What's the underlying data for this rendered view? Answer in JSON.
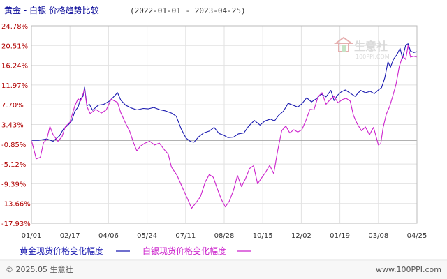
{
  "header": {
    "title": "黄金 - 白银 价格趋势比较",
    "date_range": "(2022-01-01 - 2023-04-25)"
  },
  "watermark": {
    "brand": "生意社",
    "url": "100PPI.COM"
  },
  "footer": {
    "copyright": "© 2025.05 生意社",
    "site": "www.100PPI.com"
  },
  "colors": {
    "gold": "#1a1ab0",
    "silver": "#cc22cc",
    "ytick": "#b00000",
    "grid": "#e2e2e2",
    "zero": "#999999"
  },
  "chart_data": {
    "type": "line",
    "ylim": [
      -17.93,
      24.78
    ],
    "yticks": [
      24.78,
      20.51,
      16.24,
      11.97,
      7.7,
      3.43,
      -0.85,
      -5.12,
      -9.39,
      -13.66,
      -17.93
    ],
    "ytick_labels": [
      "24.78%",
      "20.51%",
      "16.24%",
      "11.97%",
      "7.70%",
      "3.43%",
      "-0.85%",
      "-5.12%",
      "-9.39%",
      "-13.66%",
      "-17.93%"
    ],
    "xtick_labels": [
      "01/01",
      "02/17",
      "04/06",
      "05/24",
      "07/11",
      "08/28",
      "10/15",
      "12/02",
      "01/19",
      "03/08",
      "04/25"
    ],
    "x_start": "2022-01-01",
    "x_end": "2023-04-25",
    "series": [
      {
        "name": "黄金现货价格变化幅度",
        "color": "#1a1ab0",
        "points": [
          [
            "2022-01-01",
            0.0
          ],
          [
            "2022-01-10",
            0.0
          ],
          [
            "2022-01-20",
            0.3
          ],
          [
            "2022-01-28",
            -0.2
          ],
          [
            "2022-02-05",
            1.0
          ],
          [
            "2022-02-10",
            2.5
          ],
          [
            "2022-02-15",
            3.2
          ],
          [
            "2022-02-20",
            4.2
          ],
          [
            "2022-02-24",
            6.3
          ],
          [
            "2022-02-28",
            7.2
          ],
          [
            "2022-03-03",
            9.0
          ],
          [
            "2022-03-06",
            9.5
          ],
          [
            "2022-03-08",
            11.5
          ],
          [
            "2022-03-11",
            7.5
          ],
          [
            "2022-03-14",
            7.8
          ],
          [
            "2022-03-18",
            6.5
          ],
          [
            "2022-03-25",
            7.6
          ],
          [
            "2022-04-01",
            7.8
          ],
          [
            "2022-04-08",
            8.5
          ],
          [
            "2022-04-12",
            9.2
          ],
          [
            "2022-04-18",
            10.3
          ],
          [
            "2022-04-22",
            8.7
          ],
          [
            "2022-04-28",
            7.6
          ],
          [
            "2022-05-05",
            7.0
          ],
          [
            "2022-05-12",
            6.6
          ],
          [
            "2022-05-20",
            6.9
          ],
          [
            "2022-05-26",
            6.8
          ],
          [
            "2022-06-02",
            7.1
          ],
          [
            "2022-06-10",
            6.6
          ],
          [
            "2022-06-16",
            6.4
          ],
          [
            "2022-06-24",
            5.9
          ],
          [
            "2022-06-30",
            5.2
          ],
          [
            "2022-07-06",
            2.5
          ],
          [
            "2022-07-12",
            0.5
          ],
          [
            "2022-07-18",
            -0.3
          ],
          [
            "2022-07-22",
            -0.4
          ],
          [
            "2022-07-28",
            0.8
          ],
          [
            "2022-08-03",
            1.6
          ],
          [
            "2022-08-10",
            2.0
          ],
          [
            "2022-08-16",
            2.8
          ],
          [
            "2022-08-22",
            1.5
          ],
          [
            "2022-08-28",
            1.1
          ],
          [
            "2022-09-02",
            0.6
          ],
          [
            "2022-09-09",
            0.7
          ],
          [
            "2022-09-15",
            1.4
          ],
          [
            "2022-09-22",
            1.6
          ],
          [
            "2022-09-28",
            3.1
          ],
          [
            "2022-10-05",
            4.3
          ],
          [
            "2022-10-12",
            3.3
          ],
          [
            "2022-10-18",
            4.2
          ],
          [
            "2022-10-25",
            4.6
          ],
          [
            "2022-10-30",
            4.2
          ],
          [
            "2022-11-04",
            5.4
          ],
          [
            "2022-11-10",
            6.3
          ],
          [
            "2022-11-16",
            8.0
          ],
          [
            "2022-11-22",
            7.6
          ],
          [
            "2022-11-28",
            7.2
          ],
          [
            "2022-12-03",
            7.9
          ],
          [
            "2022-12-09",
            9.2
          ],
          [
            "2022-12-15",
            8.3
          ],
          [
            "2022-12-21",
            9.0
          ],
          [
            "2022-12-27",
            10.0
          ],
          [
            "2023-01-02",
            9.4
          ],
          [
            "2023-01-08",
            10.8
          ],
          [
            "2023-01-12",
            8.6
          ],
          [
            "2023-01-16",
            9.7
          ],
          [
            "2023-01-21",
            10.5
          ],
          [
            "2023-01-26",
            10.9
          ],
          [
            "2023-02-01",
            10.2
          ],
          [
            "2023-02-07",
            9.5
          ],
          [
            "2023-02-14",
            10.8
          ],
          [
            "2023-02-20",
            10.3
          ],
          [
            "2023-02-26",
            10.6
          ],
          [
            "2023-03-03",
            10.1
          ],
          [
            "2023-03-08",
            10.9
          ],
          [
            "2023-03-12",
            11.4
          ],
          [
            "2023-03-16",
            13.5
          ],
          [
            "2023-03-20",
            17.0
          ],
          [
            "2023-03-23",
            15.8
          ],
          [
            "2023-03-27",
            17.6
          ],
          [
            "2023-03-31",
            18.5
          ],
          [
            "2023-04-04",
            19.9
          ],
          [
            "2023-04-07",
            17.8
          ],
          [
            "2023-04-11",
            20.6
          ],
          [
            "2023-04-14",
            20.9
          ],
          [
            "2023-04-17",
            19.3
          ],
          [
            "2023-04-21",
            19.0
          ],
          [
            "2023-04-25",
            19.2
          ]
        ]
      },
      {
        "name": "白银现货价格变化幅度",
        "color": "#cc22cc",
        "points": [
          [
            "2022-01-01",
            0.0
          ],
          [
            "2022-01-04",
            -2.0
          ],
          [
            "2022-01-07",
            -4.0
          ],
          [
            "2022-01-12",
            -3.7
          ],
          [
            "2022-01-16",
            -0.5
          ],
          [
            "2022-01-20",
            0.2
          ],
          [
            "2022-01-24",
            3.0
          ],
          [
            "2022-01-28",
            1.2
          ],
          [
            "2022-02-03",
            -0.2
          ],
          [
            "2022-02-08",
            0.8
          ],
          [
            "2022-02-12",
            2.9
          ],
          [
            "2022-02-18",
            4.0
          ],
          [
            "2022-02-24",
            7.5
          ],
          [
            "2022-02-28",
            9.0
          ],
          [
            "2022-03-03",
            8.5
          ],
          [
            "2022-03-08",
            11.0
          ],
          [
            "2022-03-11",
            7.3
          ],
          [
            "2022-03-15",
            5.8
          ],
          [
            "2022-03-22",
            6.7
          ],
          [
            "2022-03-29",
            5.9
          ],
          [
            "2022-04-04",
            6.6
          ],
          [
            "2022-04-10",
            8.9
          ],
          [
            "2022-04-18",
            8.2
          ],
          [
            "2022-04-22",
            6.0
          ],
          [
            "2022-04-28",
            3.7
          ],
          [
            "2022-05-03",
            2.0
          ],
          [
            "2022-05-08",
            -0.6
          ],
          [
            "2022-05-12",
            -2.3
          ],
          [
            "2022-05-16",
            -1.3
          ],
          [
            "2022-05-22",
            -0.6
          ],
          [
            "2022-05-28",
            -0.2
          ],
          [
            "2022-06-03",
            -1.0
          ],
          [
            "2022-06-09",
            -0.6
          ],
          [
            "2022-06-15",
            -2.0
          ],
          [
            "2022-06-20",
            -3.0
          ],
          [
            "2022-06-24",
            -5.8
          ],
          [
            "2022-07-01",
            -7.6
          ],
          [
            "2022-07-08",
            -10.4
          ],
          [
            "2022-07-14",
            -12.7
          ],
          [
            "2022-07-19",
            -14.7
          ],
          [
            "2022-07-24",
            -13.6
          ],
          [
            "2022-07-30",
            -12.2
          ],
          [
            "2022-08-05",
            -9.0
          ],
          [
            "2022-08-10",
            -7.4
          ],
          [
            "2022-08-15",
            -8.0
          ],
          [
            "2022-08-20",
            -10.5
          ],
          [
            "2022-08-25",
            -12.8
          ],
          [
            "2022-08-30",
            -14.4
          ],
          [
            "2022-09-04",
            -13.1
          ],
          [
            "2022-09-09",
            -10.8
          ],
          [
            "2022-09-14",
            -7.6
          ],
          [
            "2022-09-19",
            -10.0
          ],
          [
            "2022-09-24",
            -8.3
          ],
          [
            "2022-09-29",
            -6.1
          ],
          [
            "2022-10-04",
            -5.5
          ],
          [
            "2022-10-09",
            -9.4
          ],
          [
            "2022-10-14",
            -8.1
          ],
          [
            "2022-10-19",
            -6.9
          ],
          [
            "2022-10-24",
            -5.4
          ],
          [
            "2022-10-29",
            -7.2
          ],
          [
            "2022-11-03",
            -2.2
          ],
          [
            "2022-11-08",
            2.1
          ],
          [
            "2022-11-13",
            3.1
          ],
          [
            "2022-11-18",
            1.6
          ],
          [
            "2022-11-23",
            2.3
          ],
          [
            "2022-11-28",
            1.8
          ],
          [
            "2022-12-03",
            2.3
          ],
          [
            "2022-12-08",
            4.3
          ],
          [
            "2022-12-13",
            6.7
          ],
          [
            "2022-12-18",
            6.6
          ],
          [
            "2022-12-23",
            9.4
          ],
          [
            "2022-12-28",
            10.3
          ],
          [
            "2023-01-02",
            7.8
          ],
          [
            "2023-01-07",
            8.8
          ],
          [
            "2023-01-12",
            9.5
          ],
          [
            "2023-01-17",
            8.1
          ],
          [
            "2023-01-22",
            8.8
          ],
          [
            "2023-01-27",
            9.1
          ],
          [
            "2023-02-01",
            8.5
          ],
          [
            "2023-02-05",
            5.4
          ],
          [
            "2023-02-10",
            3.5
          ],
          [
            "2023-02-15",
            2.1
          ],
          [
            "2023-02-20",
            2.9
          ],
          [
            "2023-02-25",
            1.2
          ],
          [
            "2023-03-02",
            2.8
          ],
          [
            "2023-03-05",
            1.0
          ],
          [
            "2023-03-08",
            -1.0
          ],
          [
            "2023-03-11",
            -0.7
          ],
          [
            "2023-03-14",
            2.8
          ],
          [
            "2023-03-18",
            5.7
          ],
          [
            "2023-03-22",
            7.3
          ],
          [
            "2023-03-26",
            9.6
          ],
          [
            "2023-03-30",
            12.1
          ],
          [
            "2023-04-03",
            15.9
          ],
          [
            "2023-04-07",
            18.2
          ],
          [
            "2023-04-11",
            17.5
          ],
          [
            "2023-04-14",
            20.5
          ],
          [
            "2023-04-17",
            18.0
          ],
          [
            "2023-04-21",
            18.2
          ],
          [
            "2023-04-25",
            18.0
          ]
        ]
      }
    ]
  }
}
